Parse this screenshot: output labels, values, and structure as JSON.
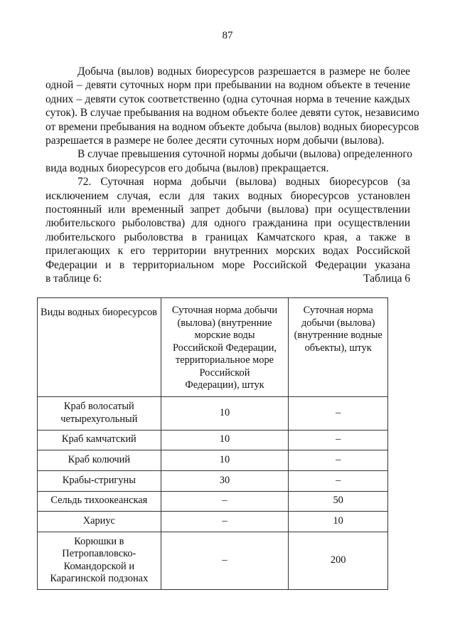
{
  "page_number": "87",
  "paragraphs": [
    {
      "lines": [
        "Добыча (вылов) водных биоресурсов разрешается в размере не более",
        "одной – девяти суточных норм при пребывании на водном объекте в течение",
        "одних – девяти суток соответственно (одна суточная норма в течение каждых",
        "суток). В случае пребывания на водном объекте более девяти суток, независимо",
        "от времени пребывания на водном объекте добыча (вылов) водных биоресурсов",
        "разрешается в размере не более десяти суточных норм добычи (вылова)."
      ]
    },
    {
      "lines": [
        "В случае превышения суточной нормы добычи (вылова) определенного",
        "вида водных биоресурсов его добыча (вылов) прекращается."
      ]
    },
    {
      "lines": [
        "72. Суточная норма добычи (вылова) водных биоресурсов (за",
        "исключением случая, если для таких водных биоресурсов установлен",
        "постоянный или временный запрет добычи (вылова) при осуществлении",
        "любительского рыболовства) для одного гражданина при осуществлении",
        "любительского рыболовства в границах Камчатского края, а также в",
        "прилегающих к его территории внутренних морских водах Российской",
        "Федерации и в территориальном море Российской Федерации указана",
        "в таблице 6:"
      ]
    }
  ],
  "table_caption": "Таблица 6",
  "table": {
    "headers": [
      "Виды водных биоресурсов",
      "Суточная норма добычи (вылова) (внутренние морские воды Российской Федерации, территориальное море Российской Федерации), штук",
      "Суточная норма добычи (вылова) (внутренние водные объекты), штук"
    ],
    "rows": [
      [
        "Краб волосатый четырехугольный",
        "10",
        "–"
      ],
      [
        "Краб камчатский",
        "10",
        "–"
      ],
      [
        "Краб колючий",
        "10",
        "–"
      ],
      [
        "Крабы-стригуны",
        "30",
        "–"
      ],
      [
        "Сельдь тихоокеанская",
        "–",
        "50"
      ],
      [
        "Хариус",
        "–",
        "10"
      ],
      [
        "Корюшки в Петропавловско-Командорской и Карагинской подзонах",
        "–",
        "200"
      ]
    ]
  }
}
